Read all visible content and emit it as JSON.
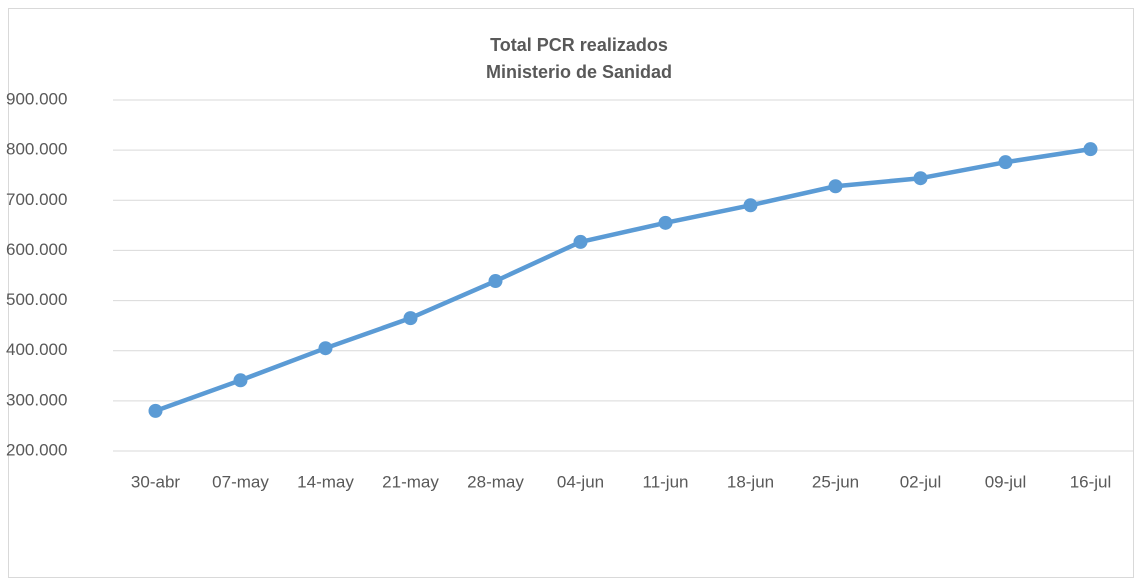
{
  "chart_data": {
    "type": "line",
    "title": "Total PCR realizados",
    "subtitle": "Ministerio de Sanidad",
    "categories": [
      "30-abr",
      "07-may",
      "14-may",
      "21-may",
      "28-may",
      "04-jun",
      "11-jun",
      "18-jun",
      "25-jun",
      "02-jul",
      "09-jul",
      "16-jul"
    ],
    "series": [
      {
        "name": "Total PCR",
        "color": "#5b9bd5",
        "values": [
          280000,
          341000,
          405000,
          465000,
          539000,
          617000,
          655000,
          690000,
          728000,
          744000,
          776000,
          802000
        ]
      }
    ],
    "ylim": [
      200000,
      900000
    ],
    "yticks": [
      {
        "value": 200000,
        "label": "200.000"
      },
      {
        "value": 300000,
        "label": "300.000"
      },
      {
        "value": 400000,
        "label": "400.000"
      },
      {
        "value": 500000,
        "label": "500.000"
      },
      {
        "value": 600000,
        "label": "600.000"
      },
      {
        "value": 700000,
        "label": "700.000"
      },
      {
        "value": 800000,
        "label": "800.000"
      },
      {
        "value": 900000,
        "label": "900.000"
      }
    ],
    "grid": true
  }
}
